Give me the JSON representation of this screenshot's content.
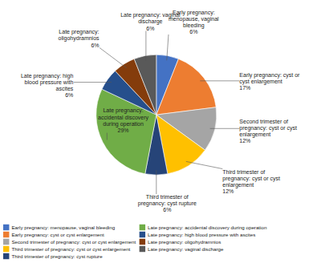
{
  "chart_data": {
    "type": "pie",
    "categories": [
      "Early pregnancy: menopause, vaginal bleeding",
      "Early pregnancy: cyst or cyst enlargement",
      "Second trimester of pregnancy: cyst or cyst enlargement",
      "Third trimester of pregnancy: cyst or cyst enlargement",
      "Third trimester of pregnancy: cyst rupture",
      "Late pregnancy: accidental discovery during operation",
      "Late pregnancy: high blood pressure with ascites",
      "Late pregnancy: oligohydramnios",
      "Late pregnancy: vaginal discharge"
    ],
    "values": [
      6,
      17,
      12,
      12,
      6,
      29,
      6,
      6,
      6
    ],
    "colors": [
      "#4472C4",
      "#ED7D31",
      "#A5A5A5",
      "#FFC000",
      "#264478",
      "#70AD47",
      "#264F8C",
      "#843C0C",
      "#595959"
    ],
    "data_labels": true,
    "value_labels": [
      "Early pregnancy:\nmenopause, vaginal\nbleeding\n6%",
      "Early pregnancy: cyst or\ncyst enlargement\n17%",
      "Second trimester of\npregnancy: cyst or cyst\nenlargement\n12%",
      "Third trimester of\npregnancy: cyst or cyst\nenlargement\n12%",
      "Third trimester of\npregnancy: cyst rupture\n6%",
      "Late pregnancy:\naccidental discovery\nduring operation\n29%",
      "Late pregnancy: high\nblood pressure with\nascites\n6%",
      "Late pregnancy:\noligohydramnios\n6%",
      "Late pregnancy: vaginal\ndischarge\n6%"
    ],
    "legend": "lower left"
  }
}
